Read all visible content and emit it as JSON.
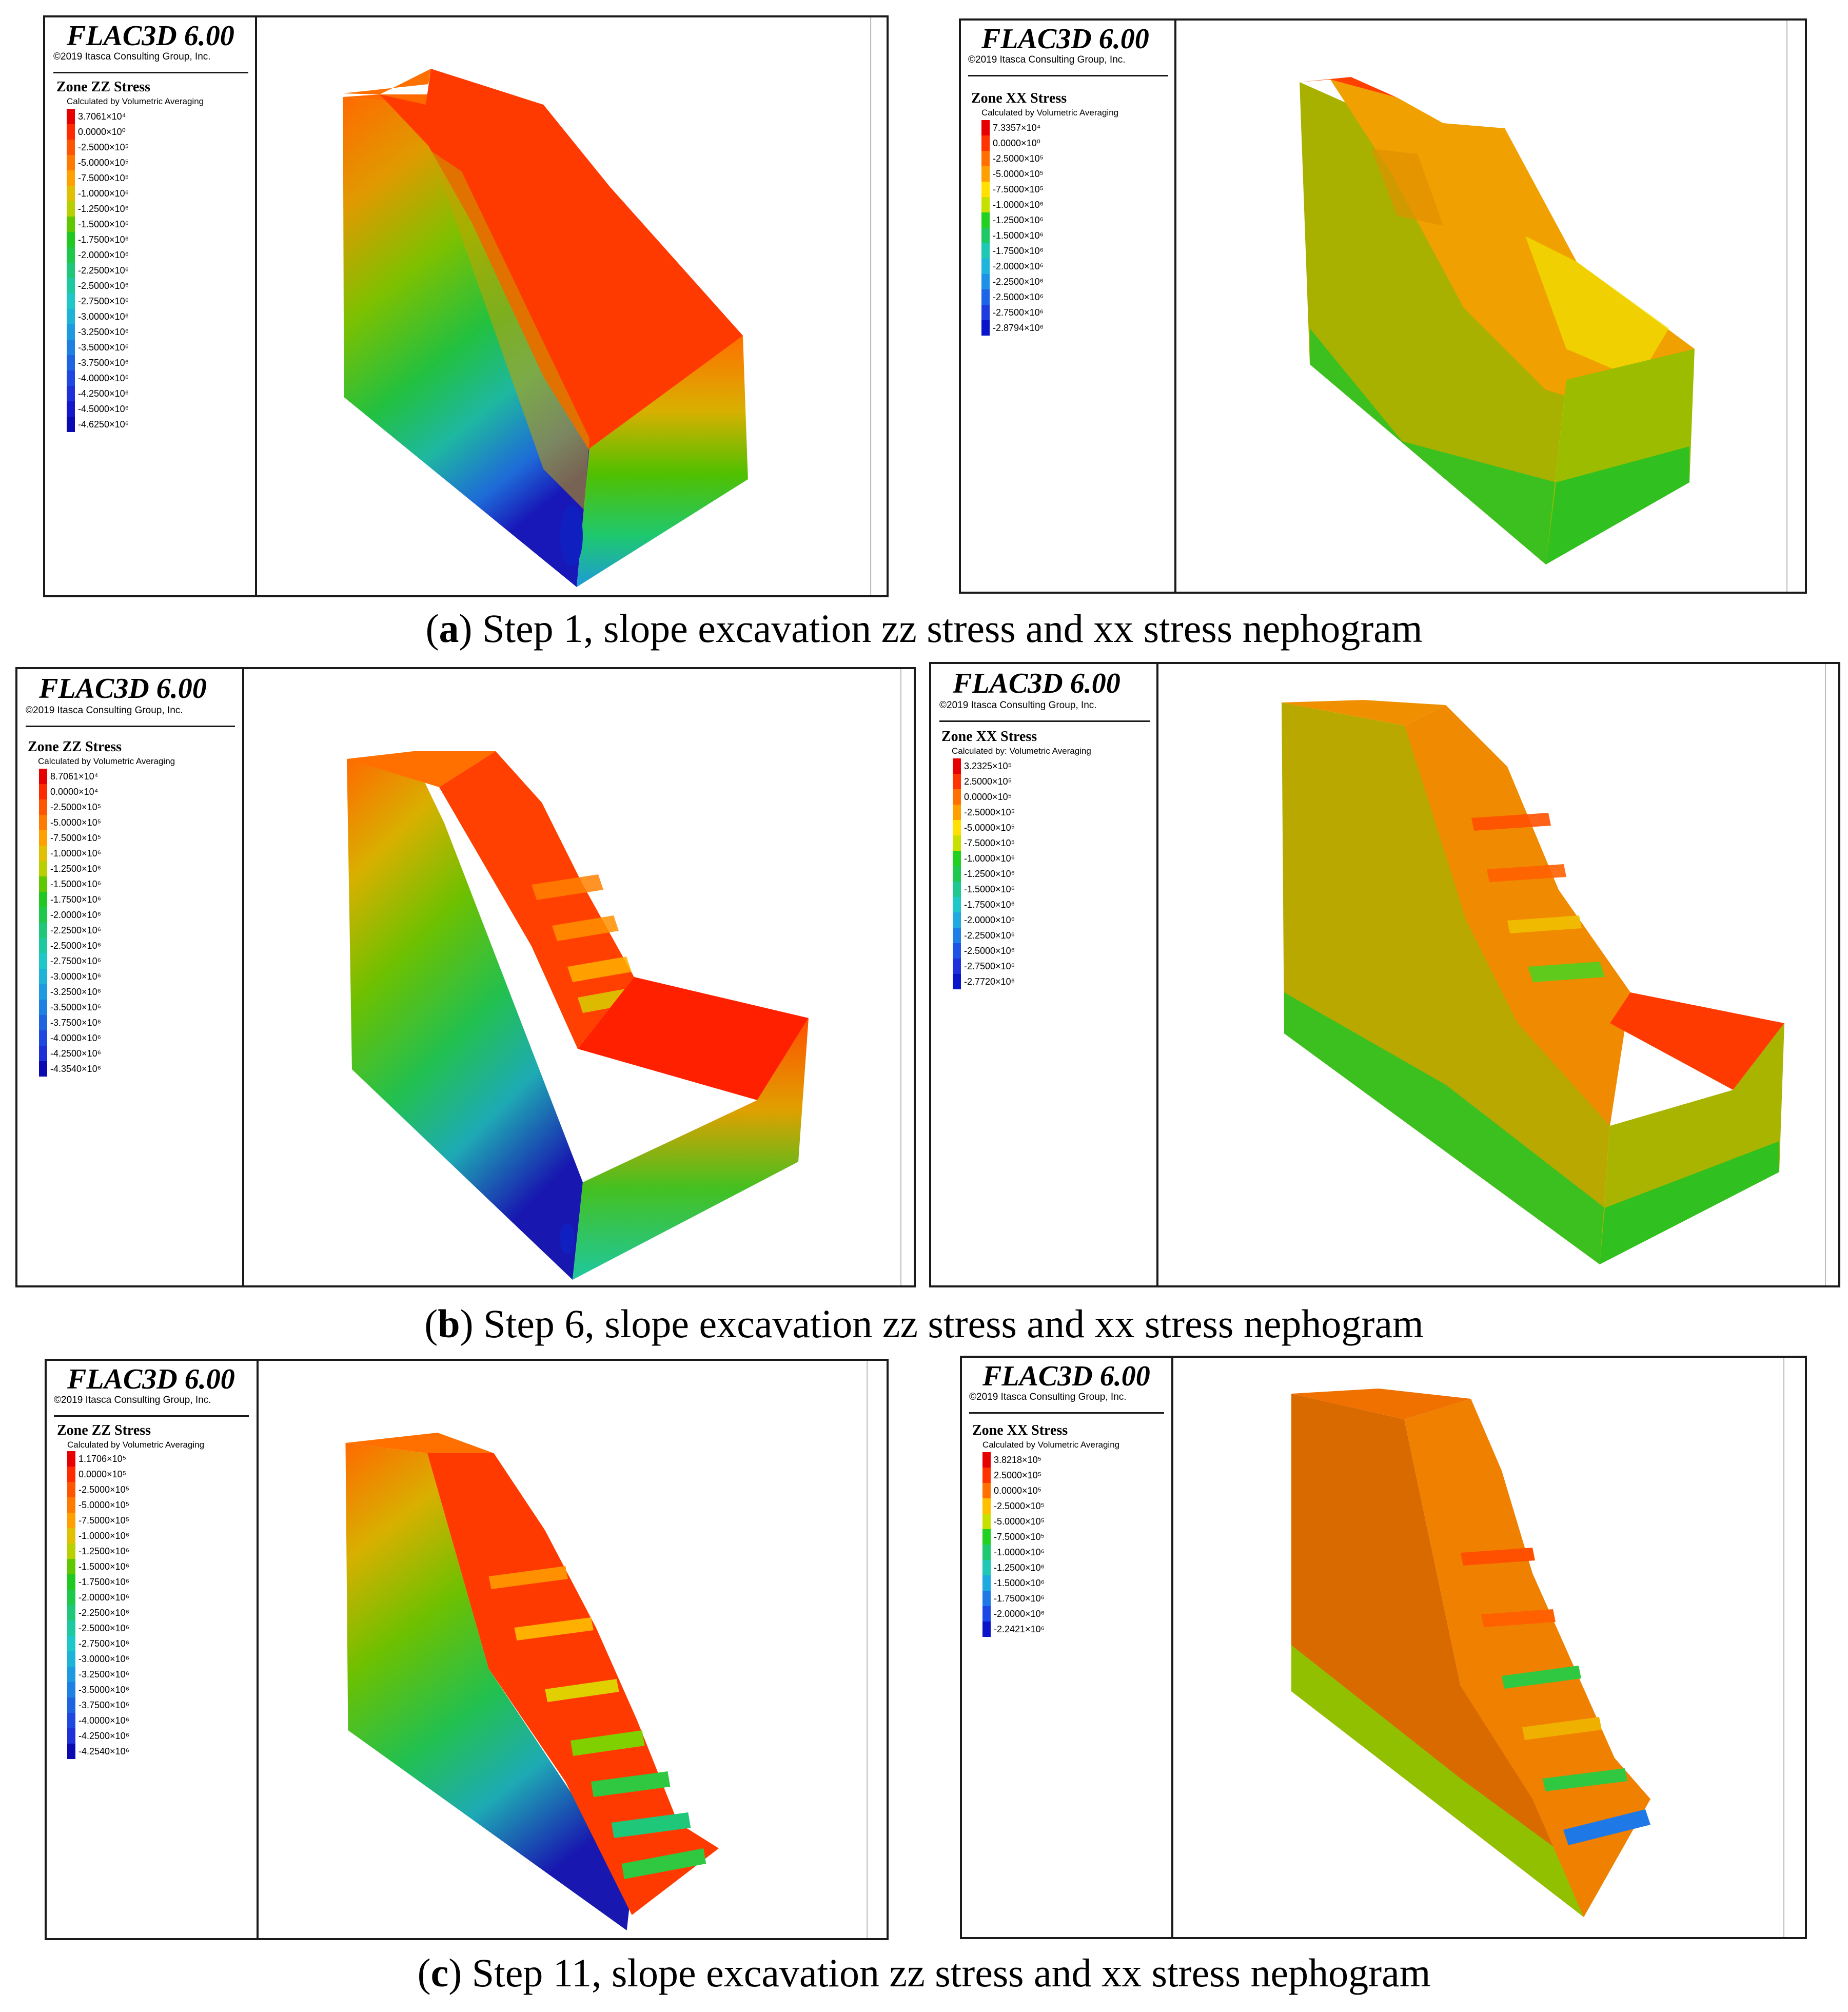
{
  "panels": [
    {
      "app_title": "FLAC3D 6.00",
      "copyright": "©2019 Itasca Consulting Group, Inc.",
      "legend_title": "Zone ZZ Stress",
      "legend_subtitle": "Calculated by Volumetric Averaging",
      "scale": [
        {
          "label": "3.7061×10⁴",
          "color": "#e60000"
        },
        {
          "label": "0.0000×10⁰",
          "color": "#ff2a00"
        },
        {
          "label": "-2.5000×10⁵",
          "color": "#ff5500"
        },
        {
          "label": "-5.0000×10⁵",
          "color": "#ff7a00"
        },
        {
          "label": "-7.5000×10⁵",
          "color": "#ffa000"
        },
        {
          "label": "-1.0000×10⁶",
          "color": "#e0c000"
        },
        {
          "label": "-1.2500×10⁶",
          "color": "#b8d000"
        },
        {
          "label": "-1.5000×10⁶",
          "color": "#60c800"
        },
        {
          "label": "-1.7500×10⁶",
          "color": "#22c822"
        },
        {
          "label": "-2.0000×10⁶",
          "color": "#1ec84a"
        },
        {
          "label": "-2.2500×10⁶",
          "color": "#1ec878"
        },
        {
          "label": "-2.5000×10⁶",
          "color": "#1ec8a0"
        },
        {
          "label": "-2.7500×10⁶",
          "color": "#1ec8c8"
        },
        {
          "label": "-3.0000×10⁶",
          "color": "#1eb4d8"
        },
        {
          "label": "-3.2500×10⁶",
          "color": "#1e9ae0"
        },
        {
          "label": "-3.5000×10⁶",
          "color": "#1e80e0"
        },
        {
          "label": "-3.7500×10⁶",
          "color": "#1e64e0"
        },
        {
          "label": "-4.0000×10⁶",
          "color": "#1e48e0"
        },
        {
          "label": "-4.2500×10⁶",
          "color": "#1e30d8"
        },
        {
          "label": "-4.5000×10⁶",
          "color": "#1418c8"
        },
        {
          "label": "-4.6250×10⁶",
          "color": "#0a0ab0"
        }
      ]
    },
    {
      "app_title": "FLAC3D 6.00",
      "copyright": "©2019 Itasca Consulting Group, Inc.",
      "legend_title": "Zone XX Stress",
      "legend_subtitle": "Calculated by Volumetric Averaging",
      "scale": [
        {
          "label": "7.3357×10⁴",
          "color": "#e60000"
        },
        {
          "label": "0.0000×10⁰",
          "color": "#ff3300"
        },
        {
          "label": "-2.5000×10⁵",
          "color": "#ff7000"
        },
        {
          "label": "-5.0000×10⁵",
          "color": "#ffa000"
        },
        {
          "label": "-7.5000×10⁵",
          "color": "#ffe000"
        },
        {
          "label": "-1.0000×10⁶",
          "color": "#c8e000"
        },
        {
          "label": "-1.2500×10⁶",
          "color": "#22d022"
        },
        {
          "label": "-1.5000×10⁶",
          "color": "#1ec864"
        },
        {
          "label": "-1.7500×10⁶",
          "color": "#1ec8b4"
        },
        {
          "label": "-2.0000×10⁶",
          "color": "#1eb4dc"
        },
        {
          "label": "-2.2500×10⁶",
          "color": "#1e90e6"
        },
        {
          "label": "-2.5000×10⁶",
          "color": "#1e64e6"
        },
        {
          "label": "-2.7500×10⁶",
          "color": "#1e3ce0"
        },
        {
          "label": "-2.8794×10⁶",
          "color": "#0a14c8"
        }
      ]
    },
    {
      "app_title": "FLAC3D 6.00",
      "copyright": "©2019 Itasca Consulting Group, Inc.",
      "legend_title": "Zone ZZ Stress",
      "legend_subtitle": "Calculated by Volumetric Averaging",
      "scale": [
        {
          "label": "8.7061×10⁴",
          "color": "#e60000"
        },
        {
          "label": "0.0000×10⁴",
          "color": "#ff2a00"
        },
        {
          "label": "-2.5000×10⁵",
          "color": "#ff5500"
        },
        {
          "label": "-5.0000×10⁵",
          "color": "#ff7a00"
        },
        {
          "label": "-7.5000×10⁵",
          "color": "#ffa000"
        },
        {
          "label": "-1.0000×10⁶",
          "color": "#e0c000"
        },
        {
          "label": "-1.2500×10⁶",
          "color": "#b8d000"
        },
        {
          "label": "-1.5000×10⁶",
          "color": "#60c800"
        },
        {
          "label": "-1.7500×10⁶",
          "color": "#22c822"
        },
        {
          "label": "-2.0000×10⁶",
          "color": "#1ec84a"
        },
        {
          "label": "-2.2500×10⁶",
          "color": "#1ec878"
        },
        {
          "label": "-2.5000×10⁶",
          "color": "#1ec8a0"
        },
        {
          "label": "-2.7500×10⁶",
          "color": "#1ec8c8"
        },
        {
          "label": "-3.0000×10⁶",
          "color": "#1eb4d8"
        },
        {
          "label": "-3.2500×10⁶",
          "color": "#1e9ae0"
        },
        {
          "label": "-3.5000×10⁶",
          "color": "#1e80e0"
        },
        {
          "label": "-3.7500×10⁶",
          "color": "#1e64e0"
        },
        {
          "label": "-4.0000×10⁶",
          "color": "#1e48e0"
        },
        {
          "label": "-4.2500×10⁶",
          "color": "#1e30d8"
        },
        {
          "label": "-4.3540×10⁶",
          "color": "#0a0ab0"
        }
      ]
    },
    {
      "app_title": "FLAC3D 6.00",
      "copyright": "©2019 Itasca Consulting Group, Inc.",
      "legend_title": "Zone XX Stress",
      "legend_subtitle": "Calculated by: Volumetric Averaging",
      "scale": [
        {
          "label": "3.2325×10⁵",
          "color": "#e60000"
        },
        {
          "label": "2.5000×10⁵",
          "color": "#ff3300"
        },
        {
          "label": "0.0000×10⁵",
          "color": "#ff7000"
        },
        {
          "label": "-2.5000×10⁵",
          "color": "#ffa000"
        },
        {
          "label": "-5.0000×10⁵",
          "color": "#ffe000"
        },
        {
          "label": "-7.5000×10⁵",
          "color": "#c8e000"
        },
        {
          "label": "-1.0000×10⁶",
          "color": "#22d022"
        },
        {
          "label": "-1.2500×10⁶",
          "color": "#1ec850"
        },
        {
          "label": "-1.5000×10⁶",
          "color": "#1ec890"
        },
        {
          "label": "-1.7500×10⁶",
          "color": "#1ec8c8"
        },
        {
          "label": "-2.0000×10⁶",
          "color": "#1eaae0"
        },
        {
          "label": "-2.2500×10⁶",
          "color": "#1e80e6"
        },
        {
          "label": "-2.5000×10⁶",
          "color": "#1e54e6"
        },
        {
          "label": "-2.7500×10⁶",
          "color": "#1e30dc"
        },
        {
          "label": "-2.7720×10⁶",
          "color": "#0a14c8"
        }
      ]
    },
    {
      "app_title": "FLAC3D 6.00",
      "copyright": "©2019 Itasca Consulting Group, Inc.",
      "legend_title": "Zone ZZ Stress",
      "legend_subtitle": "Calculated by Volumetric Averaging",
      "scale": [
        {
          "label": "1.1706×10⁵",
          "color": "#e60000"
        },
        {
          "label": "0.0000×10⁵",
          "color": "#ff2a00"
        },
        {
          "label": "-2.5000×10⁵",
          "color": "#ff5500"
        },
        {
          "label": "-5.0000×10⁵",
          "color": "#ff7a00"
        },
        {
          "label": "-7.5000×10⁵",
          "color": "#ffa000"
        },
        {
          "label": "-1.0000×10⁶",
          "color": "#e0c000"
        },
        {
          "label": "-1.2500×10⁶",
          "color": "#b8d000"
        },
        {
          "label": "-1.5000×10⁶",
          "color": "#60c800"
        },
        {
          "label": "-1.7500×10⁶",
          "color": "#22c822"
        },
        {
          "label": "-2.0000×10⁶",
          "color": "#1ec84a"
        },
        {
          "label": "-2.2500×10⁶",
          "color": "#1ec878"
        },
        {
          "label": "-2.5000×10⁶",
          "color": "#1ec8a0"
        },
        {
          "label": "-2.7500×10⁶",
          "color": "#1ec8c8"
        },
        {
          "label": "-3.0000×10⁶",
          "color": "#1eb4d8"
        },
        {
          "label": "-3.2500×10⁶",
          "color": "#1e9ae0"
        },
        {
          "label": "-3.5000×10⁶",
          "color": "#1e80e0"
        },
        {
          "label": "-3.7500×10⁶",
          "color": "#1e64e0"
        },
        {
          "label": "-4.0000×10⁶",
          "color": "#1e48e0"
        },
        {
          "label": "-4.2500×10⁶",
          "color": "#1e30d8"
        },
        {
          "label": "-4.2540×10⁶",
          "color": "#0a0ab0"
        }
      ]
    },
    {
      "app_title": "FLAC3D 6.00",
      "copyright": "©2019 Itasca Consulting Group, Inc.",
      "legend_title": "Zone XX Stress",
      "legend_subtitle": "Calculated by Volumetric Averaging",
      "scale": [
        {
          "label": "3.8218×10⁵",
          "color": "#e60000"
        },
        {
          "label": "2.5000×10⁵",
          "color": "#ff3300"
        },
        {
          "label": "0.0000×10⁵",
          "color": "#ff7000"
        },
        {
          "label": "-2.5000×10⁵",
          "color": "#ffc000"
        },
        {
          "label": "-5.0000×10⁵",
          "color": "#c8e000"
        },
        {
          "label": "-7.5000×10⁵",
          "color": "#22d022"
        },
        {
          "label": "-1.0000×10⁶",
          "color": "#1ec870"
        },
        {
          "label": "-1.2500×10⁶",
          "color": "#1ec8b4"
        },
        {
          "label": "-1.5000×10⁶",
          "color": "#1eaae0"
        },
        {
          "label": "-1.7500×10⁶",
          "color": "#1e78e6"
        },
        {
          "label": "-2.0000×10⁶",
          "color": "#1e48e6"
        },
        {
          "label": "-2.2421×10⁶",
          "color": "#0a14c8"
        }
      ]
    }
  ],
  "captions": [
    {
      "letter": "a",
      "text": " Step 1, slope excavation zz stress and xx stress nephogram"
    },
    {
      "letter": "b",
      "text": " Step 6, slope excavation zz stress and xx stress nephogram"
    },
    {
      "letter": "c",
      "text": " Step 11, slope excavation zz stress and xx stress nephogram"
    }
  ]
}
